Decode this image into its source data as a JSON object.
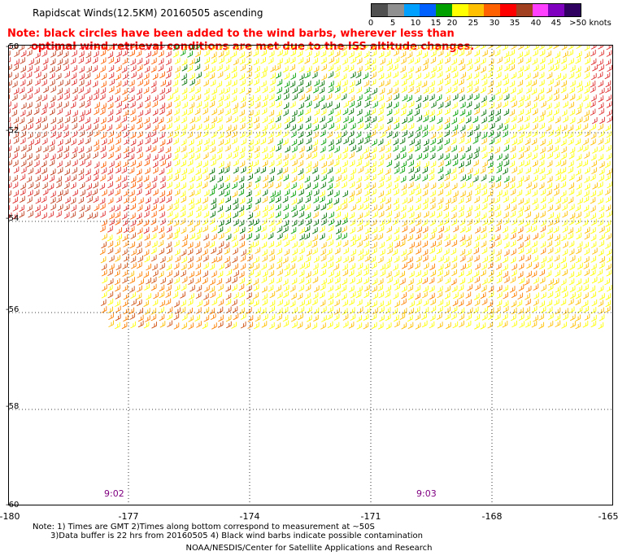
{
  "title": "Rapidscat Winds(12.5KM) 20160505 ascending",
  "note": {
    "line1": "Note: black circles have been added to the wind barbs, wherever less than",
    "line2": "optimal wind retrieval conditions are met due to the ISS altitude changes."
  },
  "legend": {
    "labels": [
      "0",
      "5",
      "10",
      "15",
      "20",
      "25",
      "30",
      "35",
      "40",
      "45",
      ">50 knots"
    ],
    "colors": [
      "#505050",
      "#909090",
      "#00a0ff",
      "#0060ff",
      "#00a000",
      "#ffff00",
      "#ffc000",
      "#ff6000",
      "#ff0000",
      "#a04020",
      "#ff40ff",
      "#8000c0",
      "#300060"
    ]
  },
  "axes": {
    "lat_labels": [
      "-50",
      "-52",
      "-54",
      "-56",
      "-58",
      "-60"
    ],
    "lon_labels": [
      "-180",
      "-177",
      "-174",
      "-171",
      "-168",
      "-165"
    ]
  },
  "times": [
    "9:02",
    "9:03"
  ],
  "footnote": {
    "line1": "Note: 1) Times are GMT 2)Times along bottom correspond to measurement at ~50S",
    "line2": "3)Data buffer is 22 hrs from 20160505 4) Black wind barbs indicate possible contamination"
  },
  "credit": "NOAA/NESDIS/Center for Satellite Applications and Research"
}
